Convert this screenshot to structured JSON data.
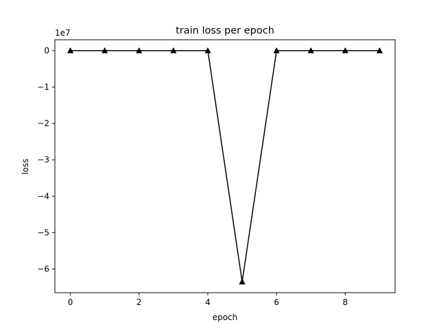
{
  "chart_data": {
    "type": "line",
    "title": "train loss per epoch",
    "xlabel": "epoch",
    "ylabel": "loss",
    "y_offset_label": "1e7",
    "y_scale_factor": 10000000,
    "xlim": [
      -0.45,
      9.45
    ],
    "ylim": [
      -6.65,
      0.3
    ],
    "x_ticks": [
      0,
      2,
      4,
      6,
      8
    ],
    "x_tick_labels": [
      "0",
      "2",
      "4",
      "6",
      "8"
    ],
    "y_ticks": [
      0,
      -1,
      -2,
      -3,
      -4,
      -5,
      -6
    ],
    "y_tick_labels": [
      "0",
      "−1",
      "−2",
      "−3",
      "−4",
      "−5",
      "−6"
    ],
    "grid": false,
    "marker": "triangle-up",
    "line_color": "#000000",
    "series": [
      {
        "x": [
          0,
          1,
          2,
          3,
          4,
          5,
          6,
          7,
          8,
          9
        ],
        "values": [
          0,
          0,
          0,
          0,
          0,
          -6.35,
          0,
          0,
          0,
          0
        ]
      }
    ]
  }
}
